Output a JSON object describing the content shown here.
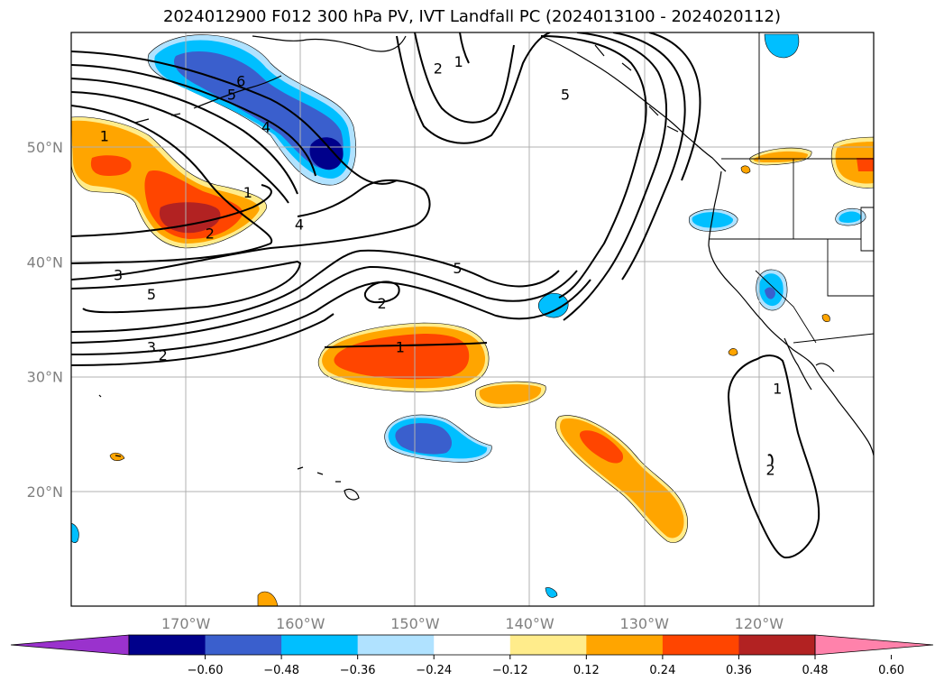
{
  "title": "2024012900 F012 300 hPa PV, IVT Landfall PC (2024013100 - 2024020112)",
  "map": {
    "projection": "PlateCarree",
    "lon_range": [
      -180,
      -110
    ],
    "lat_range": [
      10,
      60
    ],
    "lon_ticks": [
      {
        "lon": -170,
        "label": "170°W"
      },
      {
        "lon": -160,
        "label": "160°W"
      },
      {
        "lon": -150,
        "label": "150°W"
      },
      {
        "lon": -140,
        "label": "140°W"
      },
      {
        "lon": -130,
        "label": "130°W"
      },
      {
        "lon": -120,
        "label": "120°W"
      }
    ],
    "lat_ticks": [
      {
        "lat": 20,
        "label": "20°N"
      },
      {
        "lat": 30,
        "label": "30°N"
      },
      {
        "lat": 40,
        "label": "40°N"
      },
      {
        "lat": 50,
        "label": "50°N"
      }
    ],
    "gridlines": true,
    "contour_labels": [
      {
        "text": "6",
        "lon": -165.2,
        "lat": 55.8
      },
      {
        "text": "5",
        "lon": -166.0,
        "lat": 54.6
      },
      {
        "text": "4",
        "lon": -163.0,
        "lat": 51.8
      },
      {
        "text": "1",
        "lon": -177.1,
        "lat": 51.0
      },
      {
        "text": "1",
        "lon": -164.6,
        "lat": 46.1
      },
      {
        "text": "2",
        "lon": -167.9,
        "lat": 42.5
      },
      {
        "text": "4",
        "lon": -160.1,
        "lat": 43.3
      },
      {
        "text": "3",
        "lon": -175.9,
        "lat": 38.9
      },
      {
        "text": "5",
        "lon": -173.0,
        "lat": 37.2
      },
      {
        "text": "3",
        "lon": -173.0,
        "lat": 32.6
      },
      {
        "text": "2",
        "lon": -172.0,
        "lat": 31.9
      },
      {
        "text": "2",
        "lon": -152.9,
        "lat": 36.4
      },
      {
        "text": "1",
        "lon": -151.3,
        "lat": 32.6
      },
      {
        "text": "5",
        "lon": -146.3,
        "lat": 39.5
      },
      {
        "text": "2",
        "lon": -148.0,
        "lat": 56.9
      },
      {
        "text": "1",
        "lon": -146.2,
        "lat": 57.5
      },
      {
        "text": "5",
        "lon": -136.9,
        "lat": 54.6
      },
      {
        "text": "1",
        "lon": -118.4,
        "lat": 29.0
      },
      {
        "text": "2",
        "lon": -119.0,
        "lat": 21.9
      }
    ]
  },
  "colorbar": {
    "colors": [
      "#9a32cd",
      "#00008b",
      "#3a5fcd",
      "#00bfff",
      "#b0e2ff",
      "#ffffff",
      "#ffec8b",
      "#ffa500",
      "#ff4500",
      "#b22222",
      "#ff82ab"
    ],
    "ticks": [
      "−0.60",
      "−0.48",
      "−0.36",
      "−0.24",
      "−0.12",
      "0.12",
      "0.24",
      "0.36",
      "0.48",
      "0.60"
    ],
    "extend": "both"
  }
}
